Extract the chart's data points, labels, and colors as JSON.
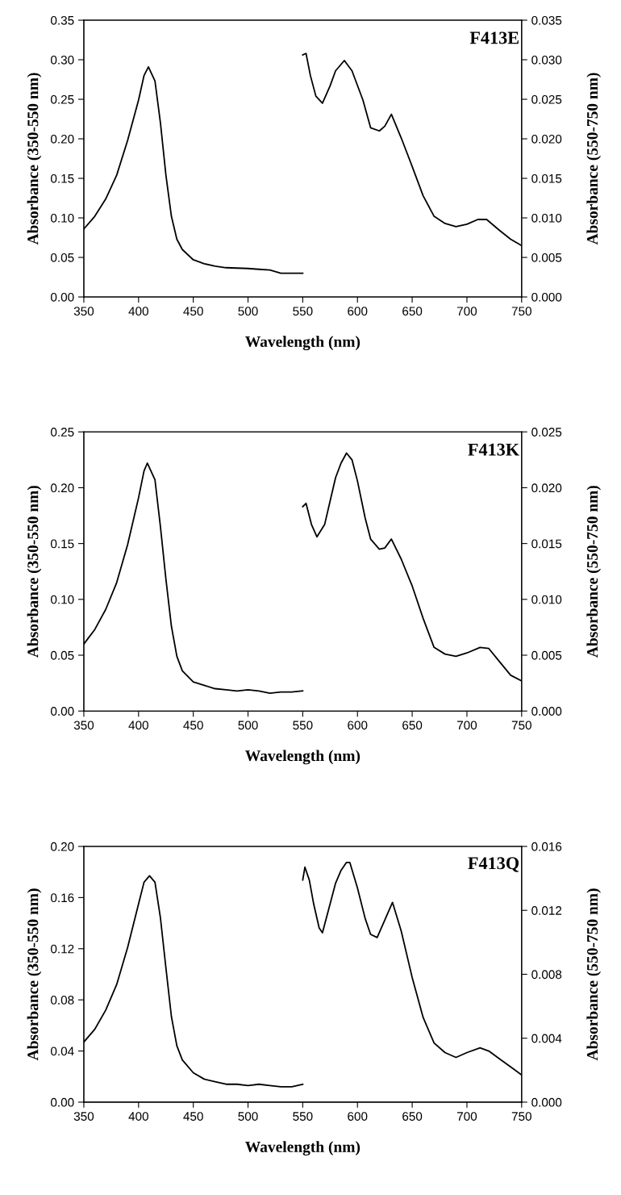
{
  "chart_data": [
    {
      "type": "line",
      "xlabel": "Wavelength (nm)",
      "ylabel": "Absorbance (350-550 nm)",
      "y2label": "Absorbance (550-750 nm)",
      "annotations": [
        "F413E"
      ],
      "xlim": [
        350,
        750
      ],
      "xticks": [
        350,
        400,
        450,
        500,
        550,
        600,
        650,
        700,
        750
      ],
      "ylim": [
        0,
        0.35
      ],
      "yticks": [
        {
          "value": 0,
          "label": "0.00"
        },
        {
          "value": 0.05,
          "label": "0.05"
        },
        {
          "value": 0.1,
          "label": "0.10"
        },
        {
          "value": 0.15,
          "label": "0.15"
        },
        {
          "value": 0.2,
          "label": "0.20"
        },
        {
          "value": 0.25,
          "label": "0.25"
        },
        {
          "value": 0.3,
          "label": "0.30"
        },
        {
          "value": 0.35,
          "label": "0.35"
        }
      ],
      "y2lim": [
        0,
        0.035
      ],
      "y2ticks": [
        {
          "value": 0,
          "label": "0.000"
        },
        {
          "value": 0.005,
          "label": "0.005"
        },
        {
          "value": 0.01,
          "label": "0.010"
        },
        {
          "value": 0.015,
          "label": "0.015"
        },
        {
          "value": 0.02,
          "label": "0.020"
        },
        {
          "value": 0.025,
          "label": "0.025"
        },
        {
          "value": 0.03,
          "label": "0.030"
        },
        {
          "value": 0.035,
          "label": "0.035"
        }
      ],
      "series": [
        {
          "color": "#000000",
          "x": [
            350,
            360,
            370,
            380,
            390,
            400,
            405,
            409,
            415,
            420,
            425,
            430,
            435,
            440,
            450,
            460,
            470,
            480,
            500,
            510,
            520,
            530,
            540,
            550
          ],
          "values": [
            0.086,
            0.102,
            0.124,
            0.154,
            0.198,
            0.249,
            0.28,
            0.291,
            0.273,
            0.22,
            0.154,
            0.102,
            0.073,
            0.06,
            0.047,
            0.042,
            0.039,
            0.037,
            0.036,
            0.035,
            0.034,
            0.03,
            0.03,
            0.03
          ]
        },
        {
          "color": "#000000",
          "axis": "y2",
          "x": [
            550,
            553,
            557,
            562,
            568,
            575,
            580,
            588,
            595,
            605,
            612,
            620,
            625,
            631,
            640,
            650,
            660,
            670,
            680,
            690,
            700,
            710,
            718,
            730,
            740,
            750
          ],
          "values": [
            0.0306,
            0.0308,
            0.028,
            0.0254,
            0.0245,
            0.0267,
            0.0286,
            0.0299,
            0.0286,
            0.0249,
            0.0214,
            0.021,
            0.0216,
            0.0231,
            0.0201,
            0.0165,
            0.0128,
            0.0102,
            0.0093,
            0.0089,
            0.0092,
            0.0098,
            0.0098,
            0.0084,
            0.0073,
            0.0065
          ]
        }
      ]
    },
    {
      "type": "line",
      "xlabel": "Wavelength (nm)",
      "ylabel": "Absorbance (350-550 nm)",
      "y2label": "Absorbance (550-750 nm)",
      "annotations": [
        "F413K"
      ],
      "xlim": [
        350,
        750
      ],
      "xticks": [
        350,
        400,
        450,
        500,
        550,
        600,
        650,
        700,
        750
      ],
      "ylim": [
        0,
        0.25
      ],
      "yticks": [
        {
          "value": 0,
          "label": "0.00"
        },
        {
          "value": 0.05,
          "label": "0.05"
        },
        {
          "value": 0.1,
          "label": "0.10"
        },
        {
          "value": 0.15,
          "label": "0.15"
        },
        {
          "value": 0.2,
          "label": "0.20"
        },
        {
          "value": 0.25,
          "label": "0.25"
        }
      ],
      "y2lim": [
        0,
        0.025
      ],
      "y2ticks": [
        {
          "value": 0,
          "label": "0.000"
        },
        {
          "value": 0.005,
          "label": "0.005"
        },
        {
          "value": 0.01,
          "label": "0.010"
        },
        {
          "value": 0.015,
          "label": "0.015"
        },
        {
          "value": 0.02,
          "label": "0.020"
        },
        {
          "value": 0.025,
          "label": "0.025"
        }
      ],
      "series": [
        {
          "color": "#000000",
          "x": [
            350,
            360,
            370,
            380,
            390,
            400,
            405,
            408,
            415,
            420,
            425,
            430,
            435,
            440,
            450,
            460,
            470,
            480,
            490,
            500,
            510,
            520,
            530,
            540,
            550
          ],
          "values": [
            0.06,
            0.073,
            0.091,
            0.115,
            0.149,
            0.191,
            0.215,
            0.222,
            0.207,
            0.165,
            0.118,
            0.076,
            0.049,
            0.036,
            0.026,
            0.023,
            0.02,
            0.019,
            0.018,
            0.019,
            0.018,
            0.016,
            0.017,
            0.017,
            0.018
          ]
        },
        {
          "color": "#000000",
          "axis": "y2",
          "x": [
            550,
            553,
            558,
            563,
            570,
            575,
            580,
            585,
            590,
            595,
            600,
            607,
            612,
            620,
            625,
            631,
            640,
            650,
            660,
            670,
            680,
            690,
            700,
            712,
            720,
            730,
            740,
            750
          ],
          "values": [
            0.0183,
            0.0186,
            0.0167,
            0.0156,
            0.0167,
            0.0188,
            0.0209,
            0.0222,
            0.0231,
            0.0225,
            0.0206,
            0.0173,
            0.0154,
            0.0145,
            0.0146,
            0.0154,
            0.0136,
            0.0112,
            0.0083,
            0.0057,
            0.0051,
            0.0049,
            0.0052,
            0.0057,
            0.0056,
            0.0044,
            0.0032,
            0.0027
          ]
        }
      ]
    },
    {
      "type": "line",
      "xlabel": "Wavelength (nm)",
      "ylabel": "Absorbance (350-550 nm)",
      "y2label": "Absorbance (550-750 nm)",
      "annotations": [
        "F413Q"
      ],
      "xlim": [
        350,
        750
      ],
      "xticks": [
        350,
        400,
        450,
        500,
        550,
        600,
        650,
        700,
        750
      ],
      "ylim": [
        0,
        0.2
      ],
      "yticks": [
        {
          "value": 0,
          "label": "0.00"
        },
        {
          "value": 0.04,
          "label": "0.04"
        },
        {
          "value": 0.08,
          "label": "0.08"
        },
        {
          "value": 0.12,
          "label": "0.12"
        },
        {
          "value": 0.16,
          "label": "0.16"
        },
        {
          "value": 0.2,
          "label": "0.20"
        }
      ],
      "y2lim": [
        0,
        0.016
      ],
      "y2ticks": [
        {
          "value": 0,
          "label": "0.000"
        },
        {
          "value": 0.004,
          "label": "0.004"
        },
        {
          "value": 0.008,
          "label": "0.008"
        },
        {
          "value": 0.012,
          "label": "0.012"
        },
        {
          "value": 0.016,
          "label": "0.016"
        }
      ],
      "series": [
        {
          "color": "#000000",
          "x": [
            350,
            360,
            370,
            380,
            390,
            400,
            405,
            410,
            415,
            420,
            425,
            430,
            435,
            440,
            450,
            460,
            470,
            480,
            490,
            500,
            510,
            520,
            530,
            540,
            550
          ],
          "values": [
            0.047,
            0.057,
            0.072,
            0.092,
            0.121,
            0.155,
            0.172,
            0.177,
            0.172,
            0.144,
            0.105,
            0.067,
            0.044,
            0.033,
            0.023,
            0.018,
            0.016,
            0.014,
            0.014,
            0.013,
            0.014,
            0.013,
            0.012,
            0.012,
            0.014
          ]
        },
        {
          "color": "#000000",
          "axis": "y2",
          "x": [
            550,
            552,
            556,
            560,
            565,
            568,
            575,
            580,
            585,
            590,
            593,
            600,
            607,
            612,
            618,
            625,
            632,
            640,
            650,
            660,
            670,
            680,
            690,
            700,
            712,
            720,
            730,
            740,
            750
          ],
          "values": [
            0.0139,
            0.0147,
            0.0139,
            0.0124,
            0.0109,
            0.0106,
            0.0124,
            0.0137,
            0.0145,
            0.015,
            0.015,
            0.0134,
            0.0115,
            0.0105,
            0.0103,
            0.0114,
            0.0125,
            0.0107,
            0.0078,
            0.0053,
            0.0037,
            0.0031,
            0.0028,
            0.0031,
            0.0034,
            0.0032,
            0.0027,
            0.0022,
            0.0017
          ]
        }
      ]
    }
  ]
}
